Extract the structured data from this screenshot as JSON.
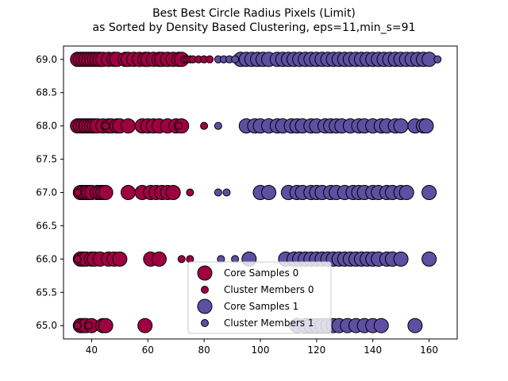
{
  "chart_data": {
    "type": "scatter",
    "title": "Best Best Circle Radius Pixels (Limit)",
    "subtitle": "as Sorted by Density Based Clustering, eps=11,min_s=91",
    "xlabel": "",
    "ylabel": "",
    "xlim": [
      30,
      170
    ],
    "ylim": [
      64.8,
      69.2
    ],
    "xticks": [
      40,
      60,
      80,
      100,
      120,
      140,
      160
    ],
    "yticks": [
      65.0,
      65.5,
      66.0,
      66.5,
      67.0,
      67.5,
      68.0,
      68.5,
      69.0
    ],
    "xtick_labels": [
      "40",
      "60",
      "80",
      "100",
      "120",
      "140",
      "160"
    ],
    "ytick_labels": [
      "65.0",
      "65.5",
      "66.0",
      "66.5",
      "67.0",
      "67.5",
      "68.0",
      "68.5",
      "69.0"
    ],
    "grid": false,
    "legend_position": "lower-center",
    "colors": {
      "cluster_0": "#9e0142",
      "cluster_1": "#5e4fa2",
      "edge": "#000000"
    },
    "series": [
      {
        "name": "Core Samples 0",
        "kind": "core",
        "color": "#9e0142",
        "points": [
          [
            35,
            69
          ],
          [
            36,
            69
          ],
          [
            37,
            69
          ],
          [
            38,
            69
          ],
          [
            39,
            69
          ],
          [
            40,
            69
          ],
          [
            41,
            69
          ],
          [
            42,
            69
          ],
          [
            43,
            69
          ],
          [
            44,
            69
          ],
          [
            46,
            69
          ],
          [
            48,
            69
          ],
          [
            49,
            69
          ],
          [
            52,
            69
          ],
          [
            53,
            69
          ],
          [
            55,
            69
          ],
          [
            57,
            69
          ],
          [
            59,
            69
          ],
          [
            60,
            69
          ],
          [
            62,
            69
          ],
          [
            64,
            69
          ],
          [
            65,
            69
          ],
          [
            67,
            69
          ],
          [
            69,
            69
          ],
          [
            71,
            69
          ],
          [
            72,
            69
          ],
          [
            35,
            68
          ],
          [
            36,
            68
          ],
          [
            37,
            68
          ],
          [
            38,
            68
          ],
          [
            39,
            68
          ],
          [
            40,
            68
          ],
          [
            41,
            68
          ],
          [
            42,
            68
          ],
          [
            44,
            68
          ],
          [
            46,
            68
          ],
          [
            47,
            68
          ],
          [
            49,
            68
          ],
          [
            50,
            68
          ],
          [
            53,
            68
          ],
          [
            58,
            68
          ],
          [
            60,
            68
          ],
          [
            62,
            68
          ],
          [
            64,
            68
          ],
          [
            67,
            68
          ],
          [
            70,
            68
          ],
          [
            72,
            68
          ],
          [
            36,
            67
          ],
          [
            37,
            67
          ],
          [
            38,
            67
          ],
          [
            39,
            67
          ],
          [
            40,
            67
          ],
          [
            42,
            67
          ],
          [
            43,
            67
          ],
          [
            44,
            67
          ],
          [
            45,
            67
          ],
          [
            53,
            67
          ],
          [
            58,
            67
          ],
          [
            61,
            67
          ],
          [
            63,
            67
          ],
          [
            65,
            67
          ],
          [
            67,
            67
          ],
          [
            69,
            67
          ],
          [
            36,
            66
          ],
          [
            37,
            66
          ],
          [
            38,
            66
          ],
          [
            40,
            66
          ],
          [
            41,
            66
          ],
          [
            43,
            66
          ],
          [
            46,
            66
          ],
          [
            48,
            66
          ],
          [
            50,
            66
          ],
          [
            61,
            66
          ],
          [
            64,
            66
          ],
          [
            36,
            65
          ],
          [
            37,
            65
          ],
          [
            38,
            65
          ],
          [
            40,
            65
          ],
          [
            44,
            65
          ],
          [
            45,
            65
          ],
          [
            59,
            65
          ]
        ]
      },
      {
        "name": "Cluster Members 0",
        "kind": "member",
        "color": "#9e0142",
        "points": [
          [
            73,
            69
          ],
          [
            74,
            69
          ],
          [
            75,
            69
          ],
          [
            76,
            69
          ],
          [
            78,
            69
          ],
          [
            80,
            69
          ],
          [
            82,
            69
          ],
          [
            71,
            68
          ],
          [
            80,
            68
          ],
          [
            45,
            68
          ],
          [
            75,
            67
          ],
          [
            35,
            67
          ],
          [
            72,
            66
          ],
          [
            75,
            66
          ],
          [
            35,
            66
          ],
          [
            35,
            65
          ],
          [
            39,
            65
          ]
        ]
      },
      {
        "name": "Core Samples 1",
        "kind": "core",
        "color": "#5e4fa2",
        "points": [
          [
            93,
            69
          ],
          [
            95,
            69
          ],
          [
            97,
            69
          ],
          [
            99,
            69
          ],
          [
            101,
            69
          ],
          [
            103,
            69
          ],
          [
            106,
            69
          ],
          [
            108,
            69
          ],
          [
            110,
            69
          ],
          [
            112,
            69
          ],
          [
            114,
            69
          ],
          [
            116,
            69
          ],
          [
            118,
            69
          ],
          [
            120,
            69
          ],
          [
            122,
            69
          ],
          [
            124,
            69
          ],
          [
            126,
            69
          ],
          [
            128,
            69
          ],
          [
            130,
            69
          ],
          [
            132,
            69
          ],
          [
            134,
            69
          ],
          [
            136,
            69
          ],
          [
            138,
            69
          ],
          [
            140,
            69
          ],
          [
            142,
            69
          ],
          [
            144,
            69
          ],
          [
            146,
            69
          ],
          [
            148,
            69
          ],
          [
            150,
            69
          ],
          [
            152,
            69
          ],
          [
            154,
            69
          ],
          [
            156,
            69
          ],
          [
            158,
            69
          ],
          [
            160,
            69
          ],
          [
            95,
            68
          ],
          [
            98,
            68
          ],
          [
            100,
            68
          ],
          [
            103,
            68
          ],
          [
            106,
            68
          ],
          [
            108,
            68
          ],
          [
            111,
            68
          ],
          [
            113,
            68
          ],
          [
            115,
            68
          ],
          [
            118,
            68
          ],
          [
            120,
            68
          ],
          [
            123,
            68
          ],
          [
            125,
            68
          ],
          [
            127,
            68
          ],
          [
            129,
            68
          ],
          [
            132,
            68
          ],
          [
            135,
            68
          ],
          [
            137,
            68
          ],
          [
            140,
            68
          ],
          [
            143,
            68
          ],
          [
            145,
            68
          ],
          [
            148,
            68
          ],
          [
            150,
            68
          ],
          [
            155,
            68
          ],
          [
            158,
            68
          ],
          [
            159,
            68
          ],
          [
            100,
            67
          ],
          [
            103,
            67
          ],
          [
            110,
            67
          ],
          [
            113,
            67
          ],
          [
            115,
            67
          ],
          [
            118,
            67
          ],
          [
            120,
            67
          ],
          [
            122,
            67
          ],
          [
            125,
            67
          ],
          [
            127,
            67
          ],
          [
            130,
            67
          ],
          [
            133,
            67
          ],
          [
            135,
            67
          ],
          [
            137,
            67
          ],
          [
            140,
            67
          ],
          [
            142,
            67
          ],
          [
            145,
            67
          ],
          [
            147,
            67
          ],
          [
            150,
            67
          ],
          [
            152,
            67
          ],
          [
            160,
            67
          ],
          [
            96,
            66
          ],
          [
            109,
            66
          ],
          [
            112,
            66
          ],
          [
            114,
            66
          ],
          [
            116,
            66
          ],
          [
            118,
            66
          ],
          [
            120,
            66
          ],
          [
            122,
            66
          ],
          [
            124,
            66
          ],
          [
            126,
            66
          ],
          [
            128,
            66
          ],
          [
            130,
            66
          ],
          [
            132,
            66
          ],
          [
            134,
            66
          ],
          [
            136,
            66
          ],
          [
            138,
            66
          ],
          [
            140,
            66
          ],
          [
            142,
            66
          ],
          [
            145,
            66
          ],
          [
            147,
            66
          ],
          [
            150,
            66
          ],
          [
            160,
            66
          ],
          [
            113,
            65
          ],
          [
            116,
            65
          ],
          [
            118,
            65
          ],
          [
            120,
            65
          ],
          [
            122,
            65
          ],
          [
            124,
            65
          ],
          [
            126,
            65
          ],
          [
            128,
            65
          ],
          [
            131,
            65
          ],
          [
            134,
            65
          ],
          [
            137,
            65
          ],
          [
            140,
            65
          ],
          [
            143,
            65
          ],
          [
            155,
            65
          ]
        ]
      },
      {
        "name": "Cluster Members 1",
        "kind": "member",
        "color": "#5e4fa2",
        "points": [
          [
            85,
            69
          ],
          [
            87,
            69
          ],
          [
            89,
            69
          ],
          [
            91,
            69
          ],
          [
            163,
            69
          ],
          [
            85,
            68
          ],
          [
            85,
            67
          ],
          [
            88,
            67
          ],
          [
            86,
            66
          ],
          [
            91,
            66
          ]
        ]
      }
    ]
  }
}
